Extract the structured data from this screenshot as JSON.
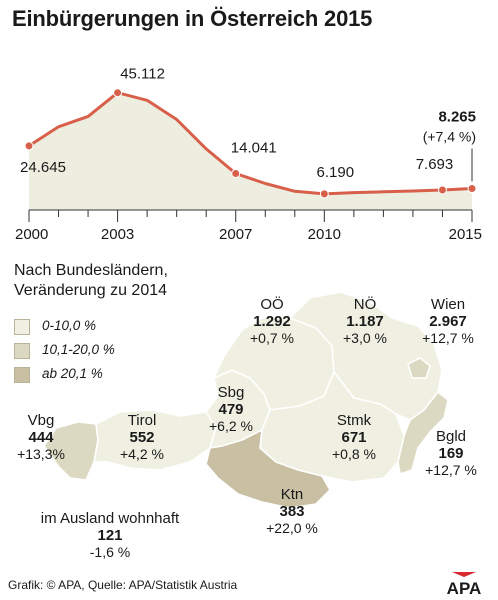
{
  "header": {
    "title": "Einbürgerungen in Österreich 2015"
  },
  "chart_data": {
    "type": "line",
    "x": [
      2000,
      2001,
      2002,
      2003,
      2004,
      2005,
      2006,
      2007,
      2008,
      2009,
      2010,
      2011,
      2012,
      2013,
      2014,
      2015
    ],
    "values": [
      24645,
      32000,
      36000,
      45112,
      42200,
      34800,
      23500,
      14041,
      10200,
      7200,
      6190,
      6700,
      7000,
      7300,
      7693,
      8265
    ],
    "series_color": "#d8604a",
    "area_color": "#eeeee0",
    "xlim": [
      2000,
      2015
    ],
    "ylim": [
      0,
      50000
    ],
    "x_tick_labels": [
      {
        "x": 2000,
        "label": "2000"
      },
      {
        "x": 2003,
        "label": "2003"
      },
      {
        "x": 2007,
        "label": "2007"
      },
      {
        "x": 2010,
        "label": "2010"
      },
      {
        "x": 2015,
        "label": "2015"
      }
    ],
    "data_labels": [
      {
        "x": 2000,
        "text": "24.645"
      },
      {
        "x": 2003,
        "text": "45.112"
      },
      {
        "x": 2007,
        "text": "14.041"
      },
      {
        "x": 2010,
        "text": "6.190"
      },
      {
        "x": 2014,
        "text": "7.693"
      },
      {
        "x": 2015,
        "text": "8.265",
        "sub": "(+7,4 %)"
      }
    ]
  },
  "regions_section": {
    "subtitle_line1": "Nach Bundesländern,",
    "subtitle_line2": "Veränderung zu 2014",
    "legend": [
      {
        "label": "0-10,0 %",
        "color": "#efefe2"
      },
      {
        "label": "10,1-20,0 %",
        "color": "#dcd9c2"
      },
      {
        "label": "ab 20,1 %",
        "color": "#c9bfa3"
      }
    ],
    "regions": [
      {
        "name": "OÖ",
        "value": "1.292",
        "change": "+0,7 %"
      },
      {
        "name": "NÖ",
        "value": "1.187",
        "change": "+3,0 %"
      },
      {
        "name": "Wien",
        "value": "2.967",
        "change": "+12,7 %"
      },
      {
        "name": "Sbg",
        "value": "479",
        "change": "+6,2 %"
      },
      {
        "name": "Vbg",
        "value": "444",
        "change": "+13,3%"
      },
      {
        "name": "Tirol",
        "value": "552",
        "change": "+4,2 %"
      },
      {
        "name": "Stmk",
        "value": "671",
        "change": "+0,8 %"
      },
      {
        "name": "Bgld",
        "value": "169",
        "change": "+12,7 %"
      },
      {
        "name": "Ktn",
        "value": "383",
        "change": "+22,0 %"
      },
      {
        "name": "im Ausland wohnhaft",
        "value": "121",
        "change": "-1,6 %"
      }
    ]
  },
  "footer": {
    "credit": "Grafik: © APA, Quelle: APA/Statistik Austria",
    "logo_text": "APA"
  }
}
